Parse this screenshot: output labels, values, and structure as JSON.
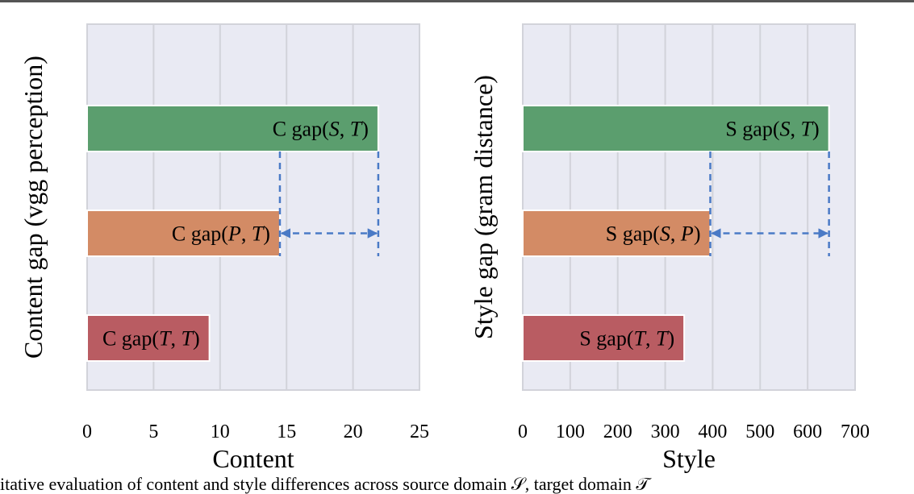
{
  "caption": "itative evaluation of content and style differences across source domain 𝒮, target domain 𝒯",
  "colors": {
    "plot_bg": "#e9eaf3",
    "grid": "#d2d3da",
    "green": "#5b9e6e",
    "orange": "#d38b65",
    "red": "#b95c62",
    "arrow": "#4a7ac6"
  },
  "chart_data": [
    {
      "type": "bar",
      "orientation": "horizontal",
      "xlabel": "Content",
      "ylabel": "Content gap (vgg perception)",
      "xlim": [
        0,
        25
      ],
      "xticks": [
        0,
        5,
        10,
        15,
        20,
        25
      ],
      "grid": true,
      "bars": [
        {
          "label": "C gap(S, T)",
          "prefix": "C gap(",
          "a": "S",
          "b": "T",
          "value": 21.9,
          "color": "green"
        },
        {
          "label": "C gap(P, T)",
          "prefix": "C gap(",
          "a": "P",
          "b": "T",
          "value": 14.5,
          "color": "orange"
        },
        {
          "label": "C gap(T, T)",
          "prefix": "C gap(",
          "a": "T",
          "b": "T",
          "value": 9.2,
          "color": "red"
        }
      ],
      "arrow": {
        "from": 14.5,
        "to": 21.9
      }
    },
    {
      "type": "bar",
      "orientation": "horizontal",
      "xlabel": "Style",
      "ylabel": "Style gap (gram distance)",
      "xlim": [
        0,
        700
      ],
      "xticks": [
        0,
        100,
        200,
        300,
        400,
        500,
        600,
        700
      ],
      "grid": true,
      "bars": [
        {
          "label": "S gap(S, T)",
          "prefix": "S gap(",
          "a": "S",
          "b": "T",
          "value": 645,
          "color": "green"
        },
        {
          "label": "S gap(S, P)",
          "prefix": "S gap(",
          "a": "S",
          "b": "P",
          "value": 395,
          "color": "orange"
        },
        {
          "label": "S gap(T, T)",
          "prefix": "S gap(",
          "a": "T",
          "b": "T",
          "value": 340,
          "color": "red"
        }
      ],
      "arrow": {
        "from": 395,
        "to": 645
      }
    }
  ]
}
